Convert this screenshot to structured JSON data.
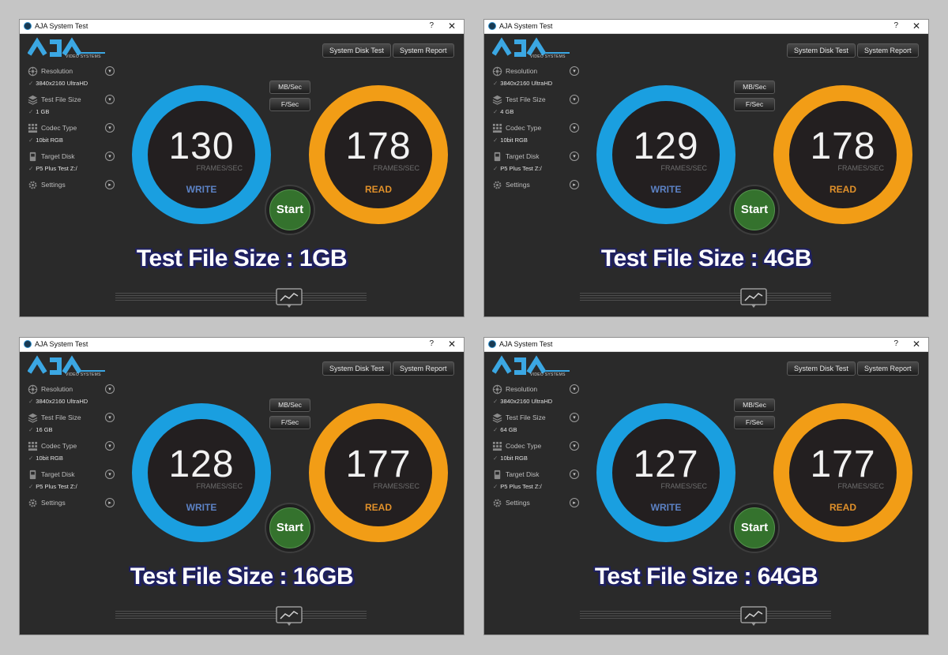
{
  "windows": [
    {
      "title": "AJA System Test",
      "logo_sub": "VIDEO SYSTEMS",
      "top_buttons": [
        "System Disk Test",
        "System Report"
      ],
      "sidebar": [
        {
          "icon": "resolution-icon",
          "label": "Resolution",
          "value": "3840x2160 UltraHD"
        },
        {
          "icon": "file-size-icon",
          "label": "Test File Size",
          "value": "1 GB"
        },
        {
          "icon": "codec-icon",
          "label": "Codec Type",
          "value": "10bit RGB"
        },
        {
          "icon": "disk-icon",
          "label": "Target Disk",
          "value": "P5 Plus Test Z:/"
        },
        {
          "icon": "settings-icon",
          "label": "Settings",
          "value": ""
        }
      ],
      "units": [
        "MB/Sec",
        "F/Sec"
      ],
      "write_value": "130",
      "read_value": "178",
      "fps_label": "FRAMES/SEC",
      "write_label": "WRITE",
      "read_label": "READ",
      "start_label": "Start",
      "overlay": "Test File Size : 1GB"
    },
    {
      "title": "AJA System Test",
      "logo_sub": "VIDEO SYSTEMS",
      "top_buttons": [
        "System Disk Test",
        "System Report"
      ],
      "sidebar": [
        {
          "icon": "resolution-icon",
          "label": "Resolution",
          "value": "3840x2160 UltraHD"
        },
        {
          "icon": "file-size-icon",
          "label": "Test File Size",
          "value": "4 GB"
        },
        {
          "icon": "codec-icon",
          "label": "Codec Type",
          "value": "10bit RGB"
        },
        {
          "icon": "disk-icon",
          "label": "Target Disk",
          "value": "P5 Plus Test Z:/"
        },
        {
          "icon": "settings-icon",
          "label": "Settings",
          "value": ""
        }
      ],
      "units": [
        "MB/Sec",
        "F/Sec"
      ],
      "write_value": "129",
      "read_value": "178",
      "fps_label": "FRAMES/SEC",
      "write_label": "WRITE",
      "read_label": "READ",
      "start_label": "Start",
      "overlay": "Test File Size : 4GB"
    },
    {
      "title": "AJA System Test",
      "logo_sub": "VIDEO SYSTEMS",
      "top_buttons": [
        "System Disk Test",
        "System Report"
      ],
      "sidebar": [
        {
          "icon": "resolution-icon",
          "label": "Resolution",
          "value": "3840x2160 UltraHD"
        },
        {
          "icon": "file-size-icon",
          "label": "Test File Size",
          "value": "16 GB"
        },
        {
          "icon": "codec-icon",
          "label": "Codec Type",
          "value": "10bit RGB"
        },
        {
          "icon": "disk-icon",
          "label": "Target Disk",
          "value": "P5 Plus Test Z:/"
        },
        {
          "icon": "settings-icon",
          "label": "Settings",
          "value": ""
        }
      ],
      "units": [
        "MB/Sec",
        "F/Sec"
      ],
      "write_value": "128",
      "read_value": "177",
      "fps_label": "FRAMES/SEC",
      "write_label": "WRITE",
      "read_label": "READ",
      "start_label": "Start",
      "overlay": "Test File Size : 16GB"
    },
    {
      "title": "AJA System Test",
      "logo_sub": "VIDEO SYSTEMS",
      "top_buttons": [
        "System Disk Test",
        "System Report"
      ],
      "sidebar": [
        {
          "icon": "resolution-icon",
          "label": "Resolution",
          "value": "3840x2160 UltraHD"
        },
        {
          "icon": "file-size-icon",
          "label": "Test File Size",
          "value": "64 GB"
        },
        {
          "icon": "codec-icon",
          "label": "Codec Type",
          "value": "10bit RGB"
        },
        {
          "icon": "disk-icon",
          "label": "Target Disk",
          "value": "P5 Plus Test Z:/"
        },
        {
          "icon": "settings-icon",
          "label": "Settings",
          "value": ""
        }
      ],
      "units": [
        "MB/Sec",
        "F/Sec"
      ],
      "write_value": "127",
      "read_value": "177",
      "fps_label": "FRAMES/SEC",
      "write_label": "WRITE",
      "read_label": "READ",
      "start_label": "Start",
      "overlay": "Test File Size : 64GB"
    }
  ],
  "colors": {
    "write": "#1a9fe0",
    "read": "#f29d16",
    "start": "#34722d",
    "window_bg": "#2a2a2a",
    "overlay_outline": "#1f2060"
  },
  "help_glyph": "?",
  "close_glyph": "✕",
  "check_glyph": "✓"
}
